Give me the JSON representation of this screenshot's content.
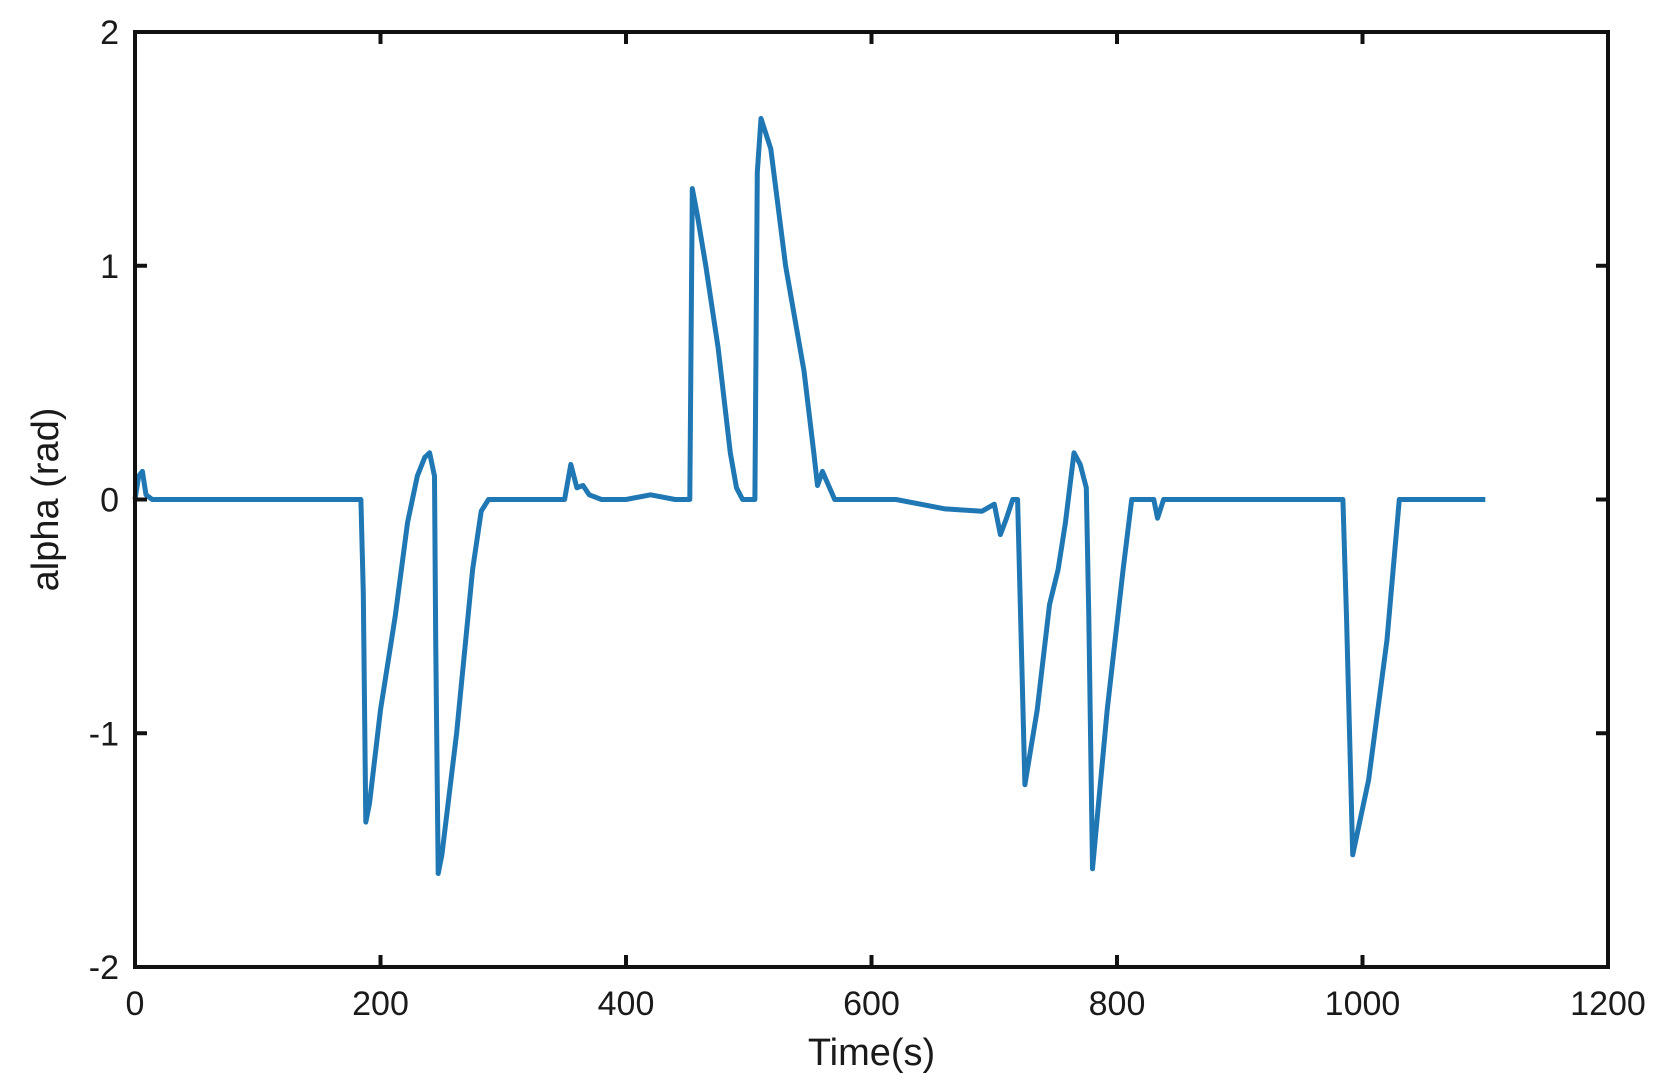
{
  "chart_data": {
    "type": "line",
    "title": "",
    "xlabel": "Time(s)",
    "ylabel": "alpha (rad)",
    "xlim": [
      0,
      1200
    ],
    "ylim": [
      -2,
      2
    ],
    "xticks": [
      0,
      200,
      400,
      600,
      800,
      1000,
      1200
    ],
    "yticks": [
      -2,
      -1,
      0,
      1,
      2
    ],
    "xtick_labels": [
      "0",
      "200",
      "400",
      "600",
      "800",
      "1000",
      "1200"
    ],
    "ytick_labels": [
      "-2",
      "-1",
      "0",
      "1",
      "2"
    ],
    "grid": false,
    "legend": "none",
    "line_color": "#1f77b4",
    "series": [
      {
        "x": [
          0,
          3,
          6,
          9,
          14,
          30,
          60,
          100,
          140,
          170,
          184,
          186,
          188,
          191,
          200,
          212,
          222,
          230,
          236,
          240,
          244,
          245,
          247,
          250,
          262,
          275,
          282,
          288,
          300,
          340,
          350,
          355,
          360,
          365,
          370,
          380,
          400,
          420,
          440,
          452,
          454,
          458,
          465,
          475,
          485,
          490,
          495,
          500,
          505,
          507,
          510,
          518,
          530,
          545,
          553,
          556,
          560,
          570,
          590,
          620,
          660,
          690,
          700,
          705,
          710,
          715,
          719,
          721,
          725,
          735,
          745,
          752,
          758,
          765,
          770,
          775,
          777,
          780,
          792,
          805,
          812,
          830,
          833,
          838,
          850,
          900,
          950,
          980,
          984,
          987,
          992,
          1005,
          1020,
          1030,
          1060,
          1100
        ],
        "y": [
          0,
          0.1,
          0.12,
          0.02,
          0,
          0,
          0,
          0,
          0,
          0,
          0,
          -0.4,
          -1.38,
          -1.3,
          -0.9,
          -0.5,
          -0.1,
          0.1,
          0.18,
          0.2,
          0.1,
          -0.6,
          -1.6,
          -1.52,
          -1.0,
          -0.3,
          -0.05,
          0,
          0,
          0,
          0,
          0.15,
          0.05,
          0.06,
          0.02,
          0,
          0,
          0.02,
          0,
          0,
          1.33,
          1.22,
          1.0,
          0.65,
          0.2,
          0.05,
          0,
          0,
          0,
          1.4,
          1.63,
          1.5,
          1.0,
          0.55,
          0.2,
          0.06,
          0.12,
          0,
          0,
          0,
          -0.04,
          -0.05,
          -0.02,
          -0.15,
          -0.08,
          0,
          0,
          -0.4,
          -1.22,
          -0.9,
          -0.45,
          -0.3,
          -0.1,
          0.2,
          0.15,
          0.05,
          -0.5,
          -1.58,
          -0.9,
          -0.3,
          0,
          0,
          -0.08,
          0,
          0,
          0,
          0,
          0,
          0,
          -0.5,
          -1.52,
          -1.2,
          -0.6,
          0,
          0,
          0
        ]
      }
    ]
  }
}
